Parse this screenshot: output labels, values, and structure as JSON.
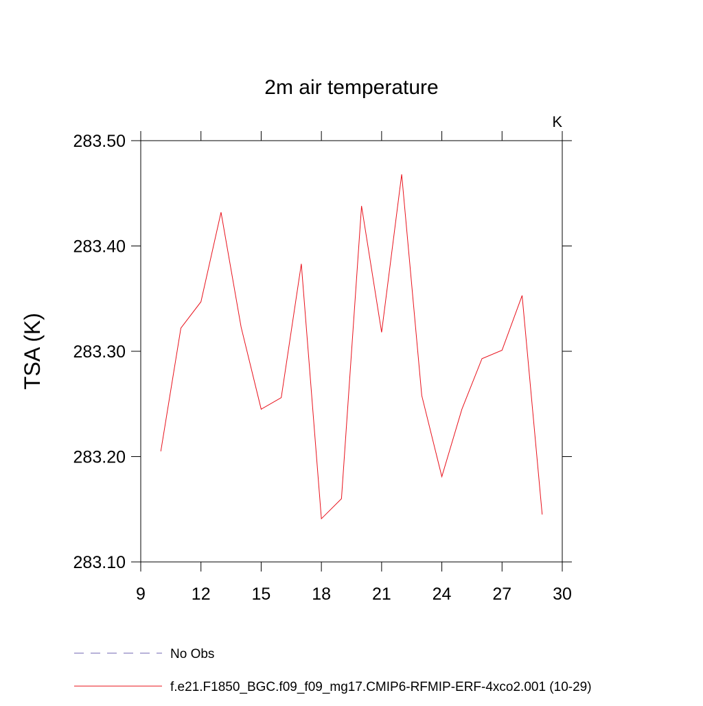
{
  "chart_data": {
    "type": "line",
    "title": "2m air temperature",
    "units": "K",
    "y_label": "TSA  (K)",
    "x": [
      10,
      11,
      12,
      13,
      14,
      15,
      16,
      17,
      18,
      19,
      20,
      21,
      22,
      23,
      24,
      25,
      26,
      27,
      28,
      29
    ],
    "series": [
      {
        "name": "No Obs",
        "color": "#6f63b0",
        "dashed": true,
        "values": [
          null,
          null,
          null,
          null,
          null,
          null,
          null,
          null,
          null,
          null,
          null,
          null,
          null,
          null,
          null,
          null,
          null,
          null,
          null,
          null
        ]
      },
      {
        "name": "f.e21.F1850_BGC.f09_f09_mg17.CMIP6-RFMIP-ERF-4xco2.001 (10-29)",
        "color": "#e8101a",
        "dashed": false,
        "values": [
          283.205,
          283.322,
          283.347,
          283.432,
          283.323,
          283.245,
          283.256,
          283.383,
          283.141,
          283.16,
          283.438,
          283.318,
          283.468,
          283.258,
          283.181,
          283.245,
          283.293,
          283.301,
          283.353,
          283.145
        ]
      }
    ],
    "xlim": [
      9,
      30
    ],
    "xticks": [
      9,
      12,
      15,
      18,
      21,
      24,
      27,
      30
    ],
    "ylim": [
      283.1,
      283.5
    ],
    "yticks": [
      {
        "value": 283.1,
        "label": "283.10"
      },
      {
        "value": 283.2,
        "label": "283.20"
      },
      {
        "value": 283.3,
        "label": "283.30"
      },
      {
        "value": 283.4,
        "label": "283.40"
      },
      {
        "value": 283.5,
        "label": "283.50"
      }
    ]
  }
}
